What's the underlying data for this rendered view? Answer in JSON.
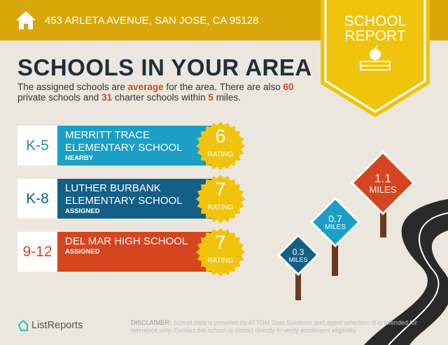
{
  "header": {
    "address": "453 ARLETA AVENUE, SAN JOSE, CA 95128",
    "icon": "house-icon"
  },
  "badge": {
    "line1": "SCHOOL",
    "line2": "REPORT",
    "icon": "apple-books-icon"
  },
  "title": "SCHOOLS IN YOUR AREA",
  "description": {
    "p1": "The assigned schools are ",
    "quality": "average",
    "p2": " for the area. There are also ",
    "private_count": "60",
    "p3": " private schools and ",
    "charter_count": "31",
    "p4": " charter schools within ",
    "radius": "5",
    "p5": " miles."
  },
  "schools": [
    {
      "grade": "K-5",
      "name_line1": "MERRITT TRACE",
      "name_line2": "ELEMENTARY SCHOOL",
      "status": "NEARBY",
      "rating": "6",
      "rating_label": "RATING",
      "color": "#1b9fc6",
      "grade_color": "#1b8fa8"
    },
    {
      "grade": "K-8",
      "name_line1": "LUTHER BURBANK",
      "name_line2": "ELEMENTARY SCHOOL",
      "status": "ASSIGNED",
      "rating": "7",
      "rating_label": "RATING",
      "color": "#135f86",
      "grade_color": "#135f86"
    },
    {
      "grade": "9-12",
      "name_line1": "DEL MAR HIGH SCHOOL",
      "name_line2": "",
      "status": "ASSIGNED",
      "rating": "7",
      "rating_label": "RATING",
      "color": "#d5451f",
      "grade_color": "#d5451f"
    }
  ],
  "signs": [
    {
      "value": "1.1",
      "unit": "MILES",
      "color": "#d5451f"
    },
    {
      "value": "0.7",
      "unit": "MILES",
      "color": "#1b9fc6"
    },
    {
      "value": "0.3",
      "unit": "MILES",
      "color": "#135f86"
    }
  ],
  "footer": {
    "logo": "ListReports",
    "disclaimer_label": "DISCLAIMER:",
    "disclaimer": " School data is provided by ATTOM Data Solutions and agent selection. It is intended for reference only. Contact the school or district directly to verify enrollment eligibility."
  }
}
